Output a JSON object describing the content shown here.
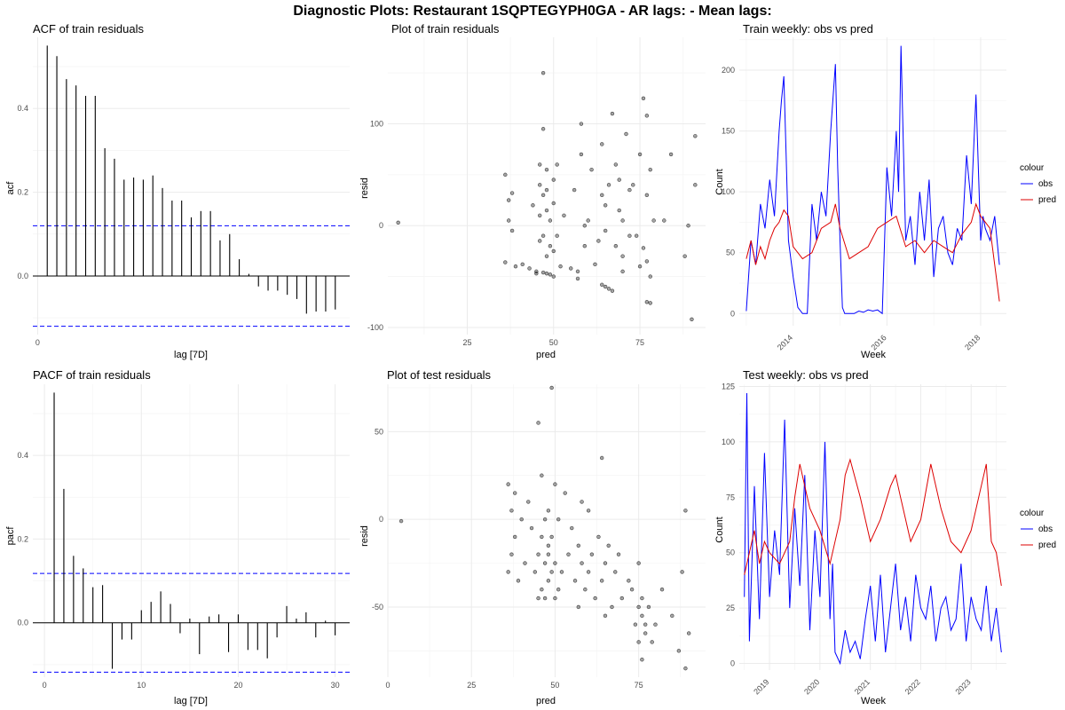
{
  "figure": {
    "title": "Diagnostic Plots: Restaurant 1SQPTEGYPH0GA - AR lags:  - Mean lags:"
  },
  "colors": {
    "obs": "#0000ff",
    "pred": "#dd0000",
    "ci": "#0000ff",
    "bar": "#000000",
    "point": "#000000"
  },
  "chart_data": [
    {
      "id": "acf",
      "type": "bar",
      "title": "ACF of train residuals",
      "xlabel": "lag [7D]",
      "ylabel": "acf",
      "xlim": [
        -0.5,
        32.5
      ],
      "ylim": [
        -0.14,
        0.57
      ],
      "xticks": [
        0
      ],
      "yticks": [
        0.0,
        0.2,
        0.4
      ],
      "ytick_labels": [
        "0.0",
        "0.2",
        "0.4"
      ],
      "ci": 0.12,
      "lags": [
        1,
        2,
        3,
        4,
        5,
        6,
        7,
        8,
        9,
        10,
        11,
        12,
        13,
        14,
        15,
        16,
        17,
        18,
        19,
        20,
        21,
        22,
        23,
        24,
        25,
        26,
        27,
        28,
        29,
        30,
        31
      ],
      "values": [
        0.55,
        0.525,
        0.47,
        0.455,
        0.43,
        0.43,
        0.305,
        0.28,
        0.23,
        0.235,
        0.23,
        0.24,
        0.21,
        0.18,
        0.18,
        0.14,
        0.155,
        0.155,
        0.085,
        0.1,
        0.04,
        0.005,
        -0.025,
        -0.035,
        -0.035,
        -0.045,
        -0.055,
        -0.09,
        -0.085,
        -0.085,
        -0.08
      ]
    },
    {
      "id": "train_resid",
      "type": "scatter",
      "title": "Plot of train residuals",
      "xlabel": "pred",
      "ylabel": "resid",
      "xlim": [
        2,
        94
      ],
      "ylim": [
        -107,
        185
      ],
      "xticks": [
        25,
        50,
        75
      ],
      "yticks": [
        -100,
        0,
        100
      ],
      "points_x": [
        5,
        36,
        36,
        37,
        37,
        38,
        38,
        39,
        41,
        43,
        44,
        45,
        45,
        46,
        46,
        46,
        46,
        47,
        47,
        47,
        47,
        47,
        48,
        48,
        48,
        48,
        48,
        49,
        49,
        49,
        50,
        50,
        50,
        50,
        51,
        51,
        52,
        53,
        55,
        56,
        57,
        57,
        58,
        58,
        59,
        59,
        60,
        61,
        62,
        63,
        64,
        64,
        64,
        65,
        65,
        65,
        66,
        66,
        67,
        67,
        68,
        68,
        69,
        69,
        70,
        70,
        70,
        71,
        72,
        72,
        73,
        74,
        75,
        75,
        76,
        76,
        77,
        77,
        77,
        77,
        78,
        78,
        78,
        79,
        82,
        84,
        88,
        89,
        90,
        91,
        91
      ],
      "points_y": [
        3,
        50,
        -36,
        5,
        25,
        -5,
        32,
        -40,
        -38,
        -42,
        20,
        -45,
        -47,
        60,
        40,
        10,
        -15,
        -46,
        150,
        95,
        -10,
        30,
        -47,
        35,
        55,
        -30,
        15,
        -48,
        5,
        -20,
        -50,
        45,
        22,
        -25,
        -10,
        60,
        -40,
        10,
        -42,
        35,
        -45,
        -52,
        100,
        70,
        -20,
        0,
        5,
        55,
        -38,
        -15,
        -58,
        80,
        30,
        -60,
        20,
        -5,
        -62,
        40,
        -64,
        110,
        -20,
        60,
        15,
        45,
        -30,
        5,
        -45,
        90,
        -10,
        35,
        40,
        -10,
        -40,
        70,
        -22,
        125,
        -35,
        -75,
        108,
        30,
        -76,
        -50,
        55,
        5,
        5,
        70,
        -30,
        0,
        -92,
        88,
        40
      ]
    },
    {
      "id": "train_weekly",
      "type": "line",
      "title": "Train weekly: obs vs pred",
      "xlabel": "Week",
      "ylabel": "Count",
      "xlim": [
        2012.85,
        2018.55
      ],
      "ylim": [
        -10,
        227
      ],
      "xticks": [
        2014,
        2016,
        2018
      ],
      "yticks": [
        0,
        50,
        100,
        150,
        200
      ],
      "legend_title": "colour",
      "series": [
        {
          "name": "obs",
          "x": [
            2013.0,
            2013.1,
            2013.2,
            2013.3,
            2013.4,
            2013.5,
            2013.6,
            2013.7,
            2013.75,
            2013.8,
            2013.85,
            2013.9,
            2014.0,
            2014.1,
            2014.2,
            2014.3,
            2014.4,
            2014.5,
            2014.6,
            2014.7,
            2014.8,
            2014.9,
            2014.95,
            2015.0,
            2015.05,
            2015.1,
            2015.2,
            2015.3,
            2015.4,
            2015.5,
            2015.6,
            2015.7,
            2015.8,
            2015.9,
            2016.0,
            2016.1,
            2016.2,
            2016.25,
            2016.3,
            2016.35,
            2016.4,
            2016.5,
            2016.6,
            2016.7,
            2016.8,
            2016.9,
            2017.0,
            2017.1,
            2017.2,
            2017.3,
            2017.4,
            2017.5,
            2017.6,
            2017.7,
            2017.8,
            2017.9,
            2018.0,
            2018.05,
            2018.1,
            2018.2,
            2018.3,
            2018.4
          ],
          "values": [
            2,
            60,
            40,
            90,
            70,
            110,
            80,
            150,
            175,
            195,
            130,
            60,
            30,
            5,
            0,
            0,
            90,
            60,
            100,
            80,
            150,
            205,
            120,
            60,
            5,
            0,
            0,
            0,
            2,
            1,
            3,
            2,
            3,
            0,
            120,
            80,
            150,
            100,
            220,
            140,
            60,
            80,
            40,
            100,
            60,
            110,
            30,
            70,
            80,
            50,
            40,
            70,
            60,
            130,
            90,
            180,
            60,
            80,
            70,
            60,
            80,
            40
          ]
        },
        {
          "name": "pred",
          "x": [
            2013.0,
            2013.1,
            2013.2,
            2013.3,
            2013.4,
            2013.5,
            2013.6,
            2013.7,
            2013.8,
            2013.9,
            2014.0,
            2014.2,
            2014.4,
            2014.6,
            2014.8,
            2014.9,
            2015.0,
            2015.2,
            2015.4,
            2015.6,
            2015.8,
            2016.0,
            2016.2,
            2016.4,
            2016.6,
            2016.8,
            2017.0,
            2017.2,
            2017.4,
            2017.6,
            2017.8,
            2017.9,
            2018.0,
            2018.2,
            2018.4
          ],
          "values": [
            45,
            60,
            40,
            55,
            45,
            60,
            70,
            75,
            85,
            80,
            55,
            45,
            50,
            70,
            75,
            90,
            70,
            45,
            50,
            55,
            70,
            75,
            80,
            55,
            60,
            50,
            60,
            55,
            50,
            65,
            75,
            90,
            80,
            70,
            10
          ]
        }
      ]
    },
    {
      "id": "pacf",
      "type": "bar",
      "title": "PACF of train residuals",
      "xlabel": "lag [7D]",
      "ylabel": "pacf",
      "xlim": [
        -1.2,
        31.5
      ],
      "ylim": [
        -0.13,
        0.57
      ],
      "xticks": [
        0,
        10,
        20,
        30
      ],
      "yticks": [
        0.0,
        0.2,
        0.4
      ],
      "ytick_labels": [
        "0.0",
        "0.2",
        "0.4"
      ],
      "ci": 0.118,
      "lags": [
        1,
        2,
        3,
        4,
        5,
        6,
        7,
        8,
        9,
        10,
        11,
        12,
        13,
        14,
        15,
        16,
        17,
        18,
        19,
        20,
        21,
        22,
        23,
        24,
        25,
        26,
        27,
        28,
        29,
        30
      ],
      "values": [
        0.55,
        0.32,
        0.16,
        0.13,
        0.085,
        0.09,
        -0.11,
        -0.04,
        -0.04,
        0.03,
        0.05,
        0.075,
        0.045,
        -0.025,
        0.01,
        -0.075,
        0.015,
        0.02,
        -0.07,
        0.02,
        -0.065,
        -0.065,
        -0.085,
        -0.035,
        0.04,
        0.01,
        0.025,
        -0.035,
        0.005,
        -0.03
      ]
    },
    {
      "id": "test_resid",
      "type": "scatter",
      "title": "Plot of test residuals",
      "xlabel": "pred",
      "ylabel": "resid",
      "xlim": [
        0,
        95
      ],
      "ylim": [
        -90,
        77
      ],
      "xticks": [
        0,
        25,
        50,
        75
      ],
      "yticks": [
        -50,
        0,
        50
      ],
      "points_x": [
        4,
        36,
        36,
        37,
        37,
        38,
        38,
        39,
        40,
        41,
        42,
        43,
        44,
        45,
        45,
        45,
        46,
        46,
        46,
        47,
        47,
        47,
        48,
        48,
        48,
        48,
        49,
        49,
        49,
        50,
        50,
        50,
        51,
        51,
        52,
        53,
        54,
        55,
        56,
        57,
        57,
        58,
        58,
        59,
        60,
        60,
        61,
        62,
        63,
        64,
        64,
        65,
        65,
        66,
        67,
        68,
        69,
        70,
        72,
        73,
        74,
        75,
        75,
        75,
        76,
        76,
        76,
        77,
        77,
        78,
        79,
        80,
        82,
        85,
        87,
        88,
        89,
        89,
        90
      ],
      "points_y": [
        -1,
        20,
        -30,
        5,
        -20,
        -10,
        15,
        -35,
        0,
        -25,
        10,
        -5,
        -30,
        55,
        -20,
        -45,
        25,
        -10,
        -40,
        -25,
        0,
        -45,
        -15,
        -35,
        5,
        -20,
        75,
        -30,
        -10,
        -45,
        20,
        -25,
        -40,
        0,
        -30,
        15,
        -20,
        -5,
        -35,
        -15,
        -50,
        10,
        -25,
        -40,
        -30,
        5,
        -20,
        -45,
        -10,
        -35,
        35,
        -25,
        -55,
        -15,
        -50,
        -30,
        -20,
        -45,
        -35,
        -40,
        -60,
        -50,
        -25,
        -70,
        -55,
        -45,
        -80,
        -60,
        -65,
        -50,
        -70,
        -60,
        -40,
        -55,
        -75,
        -30,
        -85,
        5,
        -65
      ]
    },
    {
      "id": "test_weekly",
      "type": "line",
      "title": "Test weekly: obs vs pred",
      "xlabel": "Week",
      "ylabel": "Count",
      "xlim": [
        2018.4,
        2023.7
      ],
      "ylim": [
        -3,
        126
      ],
      "xticks": [
        2019,
        2020,
        2021,
        2022,
        2023
      ],
      "yticks": [
        0,
        25,
        50,
        75,
        100,
        125
      ],
      "legend_title": "colour",
      "series": [
        {
          "name": "obs",
          "x": [
            2018.5,
            2018.55,
            2018.6,
            2018.7,
            2018.8,
            2018.9,
            2019.0,
            2019.1,
            2019.2,
            2019.3,
            2019.4,
            2019.5,
            2019.6,
            2019.7,
            2019.8,
            2019.9,
            2020.0,
            2020.1,
            2020.2,
            2020.25,
            2020.3,
            2020.4,
            2020.5,
            2020.6,
            2020.7,
            2020.8,
            2020.9,
            2021.0,
            2021.1,
            2021.2,
            2021.3,
            2021.4,
            2021.5,
            2021.6,
            2021.7,
            2021.8,
            2021.9,
            2022.0,
            2022.1,
            2022.2,
            2022.3,
            2022.4,
            2022.5,
            2022.6,
            2022.7,
            2022.8,
            2022.9,
            2023.0,
            2023.1,
            2023.2,
            2023.3,
            2023.4,
            2023.5,
            2023.6
          ],
          "values": [
            30,
            122,
            10,
            80,
            20,
            95,
            30,
            60,
            40,
            110,
            25,
            70,
            35,
            85,
            15,
            60,
            30,
            100,
            20,
            45,
            5,
            0,
            15,
            5,
            10,
            2,
            20,
            35,
            10,
            40,
            5,
            25,
            45,
            15,
            30,
            10,
            40,
            25,
            20,
            35,
            10,
            25,
            30,
            15,
            20,
            45,
            10,
            30,
            20,
            15,
            35,
            10,
            25,
            5
          ]
        },
        {
          "name": "pred",
          "x": [
            2018.5,
            2018.6,
            2018.7,
            2018.8,
            2018.9,
            2019.0,
            2019.2,
            2019.4,
            2019.5,
            2019.6,
            2019.8,
            2020.0,
            2020.2,
            2020.3,
            2020.4,
            2020.5,
            2020.6,
            2020.8,
            2021.0,
            2021.2,
            2021.4,
            2021.5,
            2021.6,
            2021.8,
            2022.0,
            2022.2,
            2022.4,
            2022.6,
            2022.8,
            2023.0,
            2023.2,
            2023.3,
            2023.4,
            2023.5,
            2023.6
          ],
          "values": [
            40,
            50,
            60,
            45,
            55,
            50,
            45,
            55,
            75,
            90,
            70,
            60,
            45,
            55,
            65,
            85,
            92,
            75,
            55,
            65,
            80,
            85,
            75,
            55,
            65,
            90,
            70,
            55,
            50,
            60,
            80,
            90,
            55,
            50,
            35
          ]
        }
      ]
    }
  ]
}
